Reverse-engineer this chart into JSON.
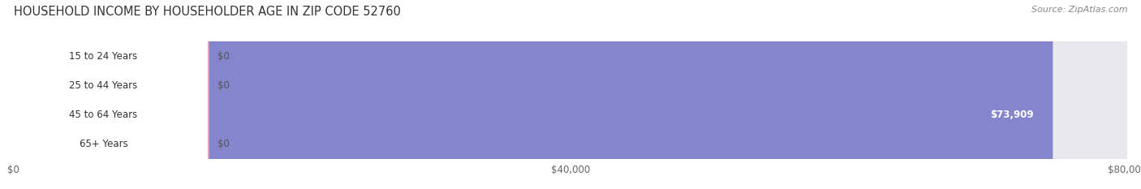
{
  "title": "HOUSEHOLD INCOME BY HOUSEHOLDER AGE IN ZIP CODE 52760",
  "source": "Source: ZipAtlas.com",
  "categories": [
    "15 to 24 Years",
    "25 to 44 Years",
    "45 to 64 Years",
    "65+ Years"
  ],
  "values": [
    0,
    0,
    73909,
    0
  ],
  "bar_colors": [
    "#c4a5d5",
    "#72cdc2",
    "#8585ce",
    "#f4a8c0"
  ],
  "bar_background": "#e8e8ee",
  "row_bg_even": "#f0f0f5",
  "row_bg_odd": "#e8e8f0",
  "xlim": [
    0,
    80000
  ],
  "xticks": [
    0,
    40000,
    80000
  ],
  "xticklabels": [
    "$0",
    "$40,000",
    "$80,000"
  ],
  "value_labels": [
    "$0",
    "$0",
    "$73,909",
    "$0"
  ],
  "title_fontsize": 10.5,
  "source_fontsize": 8,
  "label_fontsize": 8.5,
  "tick_fontsize": 8.5,
  "bar_height": 0.52,
  "figsize": [
    14.06,
    2.33
  ],
  "dpi": 100
}
